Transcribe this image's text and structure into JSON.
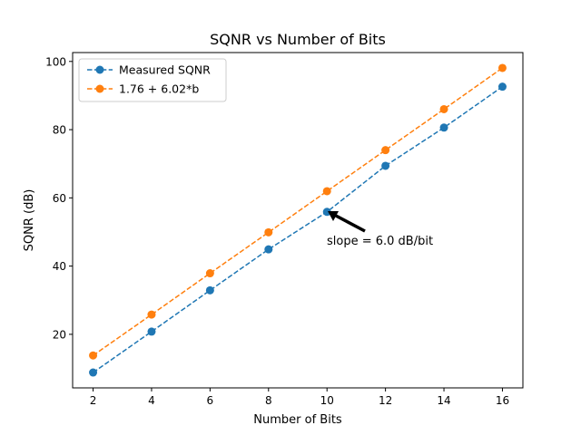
{
  "chart_data": {
    "type": "line",
    "title": "SQNR vs Number of Bits",
    "xlabel": "Number of Bits",
    "ylabel": "SQNR (dB)",
    "x": [
      2,
      4,
      6,
      8,
      10,
      12,
      14,
      16
    ],
    "xlim": [
      1.3,
      16.7
    ],
    "ylim": [
      4.3,
      102.6
    ],
    "xticks": [
      2,
      4,
      6,
      8,
      10,
      12,
      14,
      16
    ],
    "yticks": [
      20,
      40,
      60,
      80,
      100
    ],
    "grid": false,
    "legend": {
      "location": "upper left"
    },
    "series": [
      {
        "name": "Measured SQNR",
        "color": "#1f77b4",
        "linestyle": "dashed",
        "marker": "circle",
        "values": [
          8.8,
          20.8,
          32.9,
          44.9,
          55.9,
          69.4,
          80.6,
          92.6
        ]
      },
      {
        "name": "1.76 + 6.02*b",
        "color": "#ff7f0e",
        "linestyle": "dashed",
        "marker": "circle",
        "values": [
          13.8,
          25.8,
          37.9,
          49.9,
          61.96,
          74.0,
          86.0,
          98.1
        ]
      }
    ],
    "annotations": [
      {
        "text": "slope = 6.0 dB/bit",
        "arrow_to": {
          "x": 10,
          "y": 55.9
        },
        "arrow_color": "#000000"
      }
    ]
  }
}
